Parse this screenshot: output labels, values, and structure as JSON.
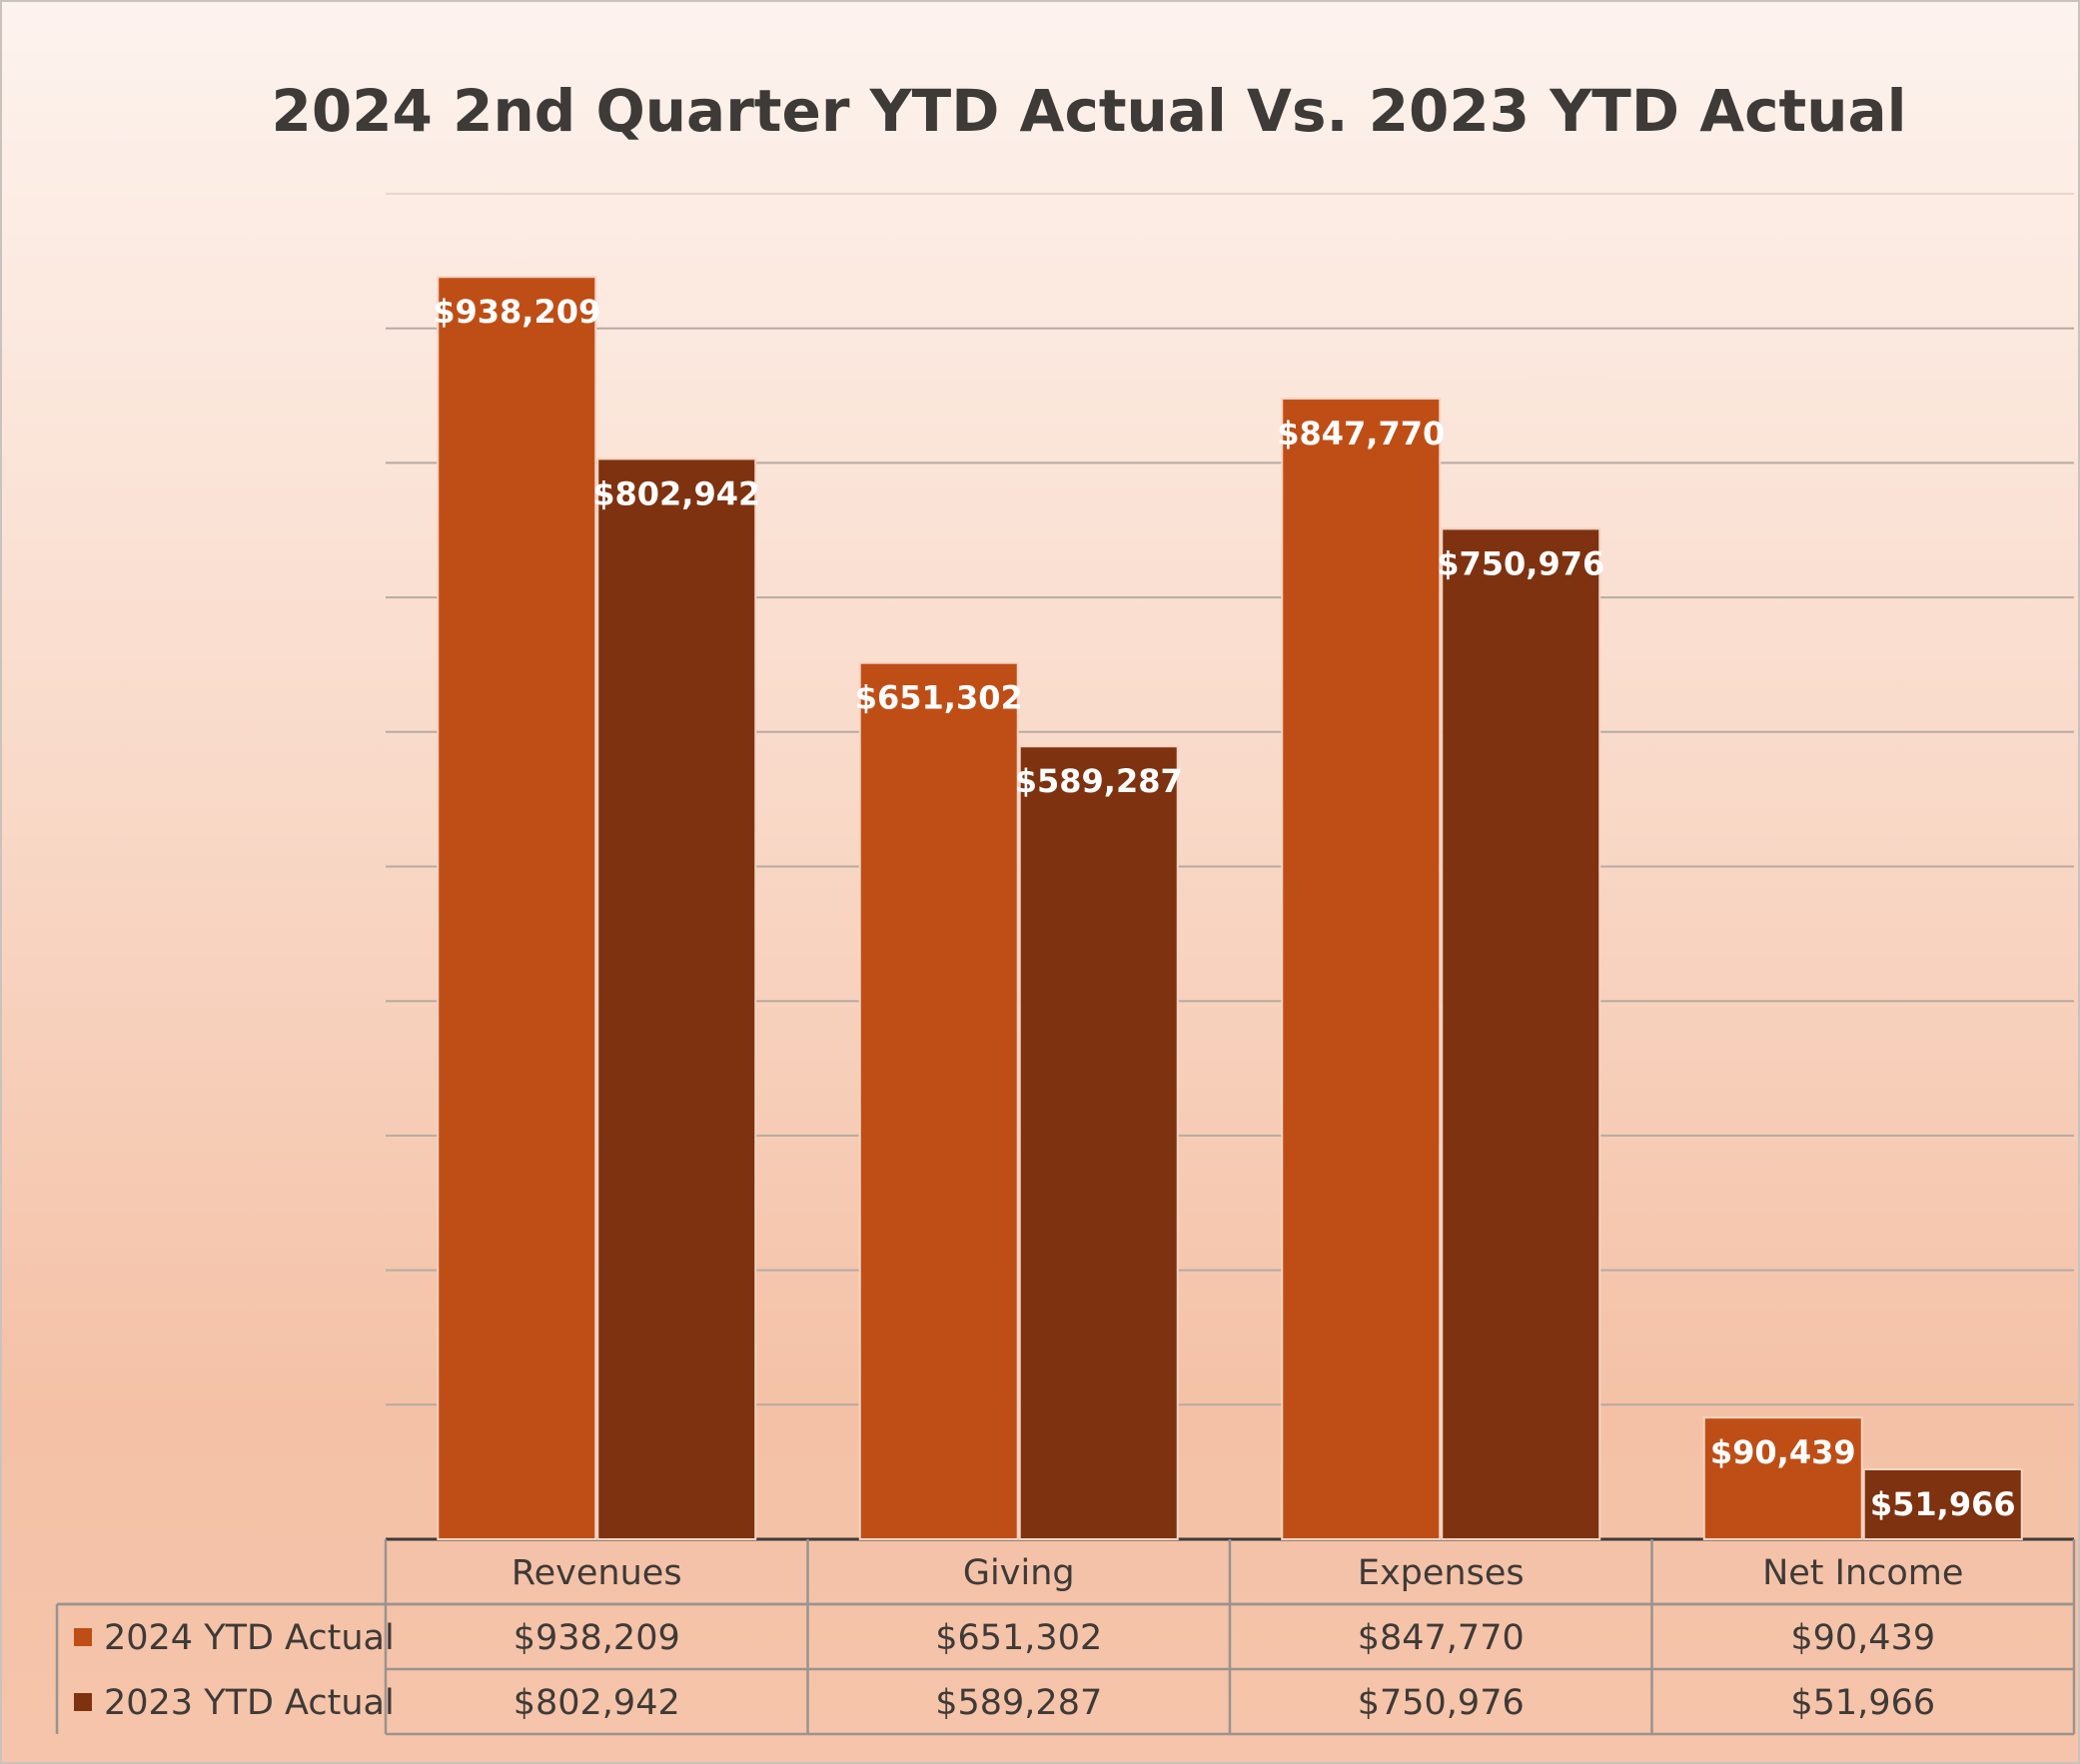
{
  "chart_data": {
    "type": "bar",
    "title": "2024 2nd Quarter YTD Actual Vs. 2023 YTD Actual",
    "categories": [
      "Revenues",
      "Giving",
      "Expenses",
      "Net Income"
    ],
    "series": [
      {
        "name": "2024 YTD Actual",
        "color": "#bf4e16",
        "values": [
          938209,
          651302,
          847770,
          90439
        ],
        "labels": [
          "$938,209",
          "$651,302",
          "$847,770",
          "$90,439"
        ]
      },
      {
        "name": "2023 YTD Actual",
        "color": "#7e3210",
        "values": [
          802942,
          589287,
          750976,
          51966
        ],
        "labels": [
          "$802,942",
          "$589,287",
          "$750,976",
          "$51,966"
        ]
      }
    ],
    "ylim": [
      0,
      1000000
    ],
    "grid": true,
    "xlabel": "",
    "ylabel": "",
    "legend": "data-table-below"
  }
}
